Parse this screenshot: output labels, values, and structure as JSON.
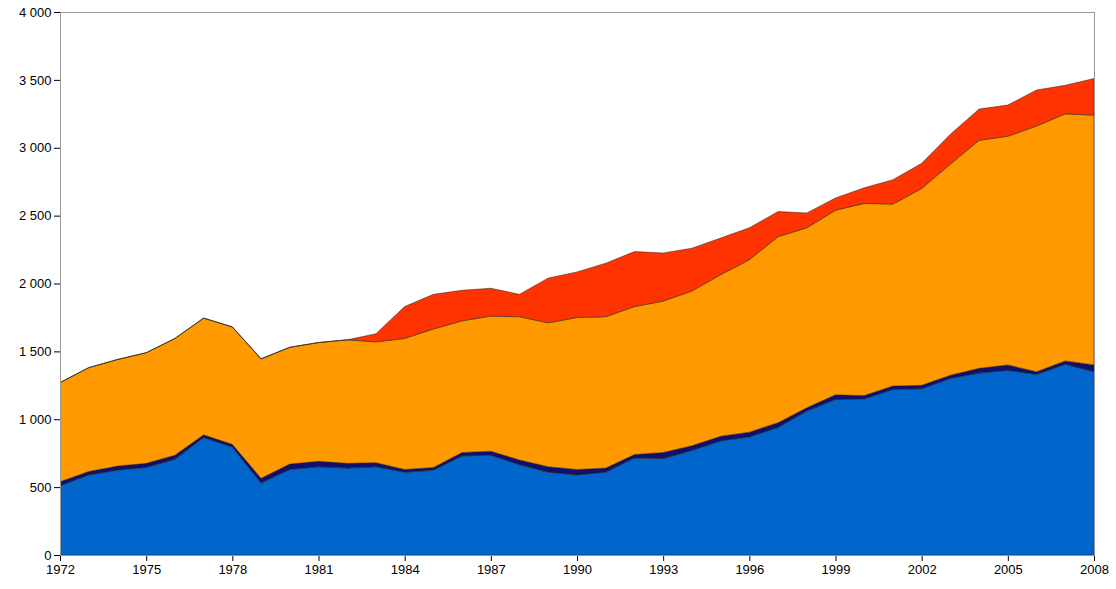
{
  "chart_data": {
    "type": "area",
    "stacked": true,
    "x": [
      1972,
      1973,
      1974,
      1975,
      1976,
      1977,
      1978,
      1979,
      1980,
      1981,
      1982,
      1983,
      1984,
      1985,
      1986,
      1987,
      1988,
      1989,
      1990,
      1991,
      1992,
      1993,
      1994,
      1995,
      1996,
      1997,
      1998,
      1999,
      2000,
      2001,
      2002,
      2003,
      2004,
      2005,
      2006,
      2007,
      2008
    ],
    "series": [
      {
        "color": "#0066cc",
        "values": [
          510,
          590,
          625,
          645,
          705,
          865,
          795,
          530,
          630,
          650,
          640,
          650,
          610,
          625,
          730,
          735,
          665,
          610,
          590,
          610,
          715,
          710,
          770,
          840,
          870,
          940,
          1060,
          1145,
          1150,
          1220,
          1225,
          1300,
          1340,
          1360,
          1330,
          1405,
          1350
        ]
      },
      {
        "color": "#10106e",
        "values": [
          30,
          25,
          30,
          30,
          30,
          20,
          20,
          35,
          40,
          40,
          35,
          30,
          20,
          20,
          25,
          30,
          35,
          40,
          40,
          30,
          25,
          45,
          35,
          35,
          35,
          35,
          25,
          35,
          25,
          25,
          25,
          25,
          35,
          40,
          20,
          25,
          50
        ]
      },
      {
        "color": "#ff9900",
        "values": [
          730,
          765,
          785,
          815,
          860,
          860,
          865,
          880,
          860,
          875,
          910,
          890,
          965,
          1020,
          970,
          995,
          1055,
          1060,
          1120,
          1115,
          1090,
          1115,
          1140,
          1190,
          1270,
          1370,
          1325,
          1360,
          1415,
          1340,
          1450,
          1555,
          1680,
          1685,
          1810,
          1820,
          1840
        ]
      },
      {
        "color": "#ff3300",
        "values": [
          0,
          0,
          0,
          0,
          0,
          0,
          0,
          0,
          0,
          0,
          0,
          60,
          235,
          255,
          225,
          205,
          165,
          330,
          335,
          395,
          405,
          355,
          315,
          270,
          235,
          185,
          110,
          90,
          115,
          180,
          185,
          220,
          230,
          230,
          265,
          210,
          270
        ]
      }
    ],
    "xlim": [
      1972,
      2008
    ],
    "xticks": [
      1972,
      1975,
      1978,
      1981,
      1984,
      1987,
      1990,
      1993,
      1996,
      1999,
      2002,
      2005,
      2008
    ],
    "ylim": [
      0,
      4000
    ],
    "yticks": [
      0,
      500,
      {
        "value": 1000,
        "label": "1 000"
      },
      {
        "value": 1500,
        "label": "1 500"
      },
      {
        "value": 2000,
        "label": "2 000"
      },
      {
        "value": 2500,
        "label": "2 500"
      },
      {
        "value": 3000,
        "label": "3 000"
      },
      {
        "value": 3500,
        "label": "3 500"
      },
      {
        "value": 4000,
        "label": "4 000"
      }
    ],
    "grid": false
  }
}
